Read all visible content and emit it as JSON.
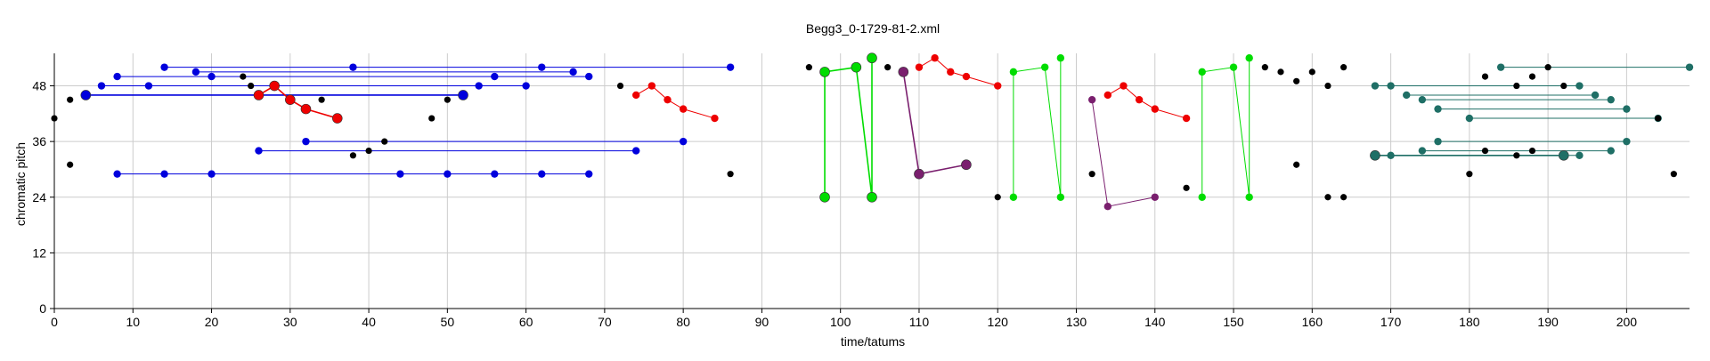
{
  "chart_data": {
    "type": "scatter",
    "title": "Begg3_0-1729-81-2.xml",
    "xlabel": "time/tatums",
    "ylabel": "chromatic pitch",
    "xlim": [
      0,
      208
    ],
    "ylim": [
      0,
      55
    ],
    "xticks": [
      0,
      10,
      20,
      30,
      40,
      50,
      60,
      70,
      80,
      90,
      100,
      110,
      120,
      130,
      140,
      150,
      160,
      170,
      180,
      190,
      200
    ],
    "yticks": [
      0,
      12,
      24,
      36,
      48
    ],
    "grid": true,
    "colors": {
      "black": "#000000",
      "blue": "#0000dd",
      "red": "#ee0000",
      "green": "#00dd00",
      "purple": "#7a1f6e",
      "teal": "#1f6f66",
      "grid": "#cccccc"
    },
    "points": [
      {
        "x": 0,
        "y": 41
      },
      {
        "x": 2,
        "y": 45
      },
      {
        "x": 2,
        "y": 31
      },
      {
        "x": 24,
        "y": 50
      },
      {
        "x": 25,
        "y": 48
      },
      {
        "x": 34,
        "y": 45
      },
      {
        "x": 38,
        "y": 33
      },
      {
        "x": 40,
        "y": 34
      },
      {
        "x": 42,
        "y": 36
      },
      {
        "x": 48,
        "y": 41
      },
      {
        "x": 50,
        "y": 45
      },
      {
        "x": 72,
        "y": 48
      },
      {
        "x": 86,
        "y": 29
      },
      {
        "x": 96,
        "y": 52
      },
      {
        "x": 106,
        "y": 52
      },
      {
        "x": 120,
        "y": 24
      },
      {
        "x": 132,
        "y": 29
      },
      {
        "x": 144,
        "y": 26
      },
      {
        "x": 154,
        "y": 52
      },
      {
        "x": 156,
        "y": 51
      },
      {
        "x": 158,
        "y": 49
      },
      {
        "x": 158,
        "y": 31
      },
      {
        "x": 160,
        "y": 51
      },
      {
        "x": 162,
        "y": 48
      },
      {
        "x": 162,
        "y": 24
      },
      {
        "x": 164,
        "y": 52
      },
      {
        "x": 164,
        "y": 24
      },
      {
        "x": 180,
        "y": 29
      },
      {
        "x": 182,
        "y": 50
      },
      {
        "x": 182,
        "y": 34
      },
      {
        "x": 186,
        "y": 48
      },
      {
        "x": 186,
        "y": 33
      },
      {
        "x": 188,
        "y": 50
      },
      {
        "x": 188,
        "y": 34
      },
      {
        "x": 190,
        "y": 52
      },
      {
        "x": 192,
        "y": 48
      },
      {
        "x": 204,
        "y": 41
      },
      {
        "x": 206,
        "y": 29
      }
    ],
    "series": [
      {
        "color": "blue",
        "points": [
          {
            "x": 14,
            "y": 52
          },
          {
            "x": 38,
            "y": 52
          },
          {
            "x": 62,
            "y": 52
          },
          {
            "x": 86,
            "y": 52
          }
        ]
      },
      {
        "color": "blue",
        "points": [
          {
            "x": 18,
            "y": 51
          },
          {
            "x": 66,
            "y": 51
          }
        ]
      },
      {
        "color": "blue",
        "points": [
          {
            "x": 8,
            "y": 50
          },
          {
            "x": 20,
            "y": 50
          },
          {
            "x": 56,
            "y": 50
          },
          {
            "x": 68,
            "y": 50
          }
        ]
      },
      {
        "color": "blue",
        "points": [
          {
            "x": 6,
            "y": 48
          },
          {
            "x": 12,
            "y": 48
          },
          {
            "x": 54,
            "y": 48
          },
          {
            "x": 60,
            "y": 48
          }
        ]
      },
      {
        "color": "blue",
        "big": true,
        "points": [
          {
            "x": 4,
            "y": 46
          },
          {
            "x": 52,
            "y": 46
          }
        ]
      },
      {
        "color": "blue",
        "points": [
          {
            "x": 32,
            "y": 36
          },
          {
            "x": 80,
            "y": 36
          }
        ]
      },
      {
        "color": "blue",
        "points": [
          {
            "x": 26,
            "y": 34
          },
          {
            "x": 74,
            "y": 34
          }
        ]
      },
      {
        "color": "blue",
        "points": [
          {
            "x": 8,
            "y": 29
          },
          {
            "x": 14,
            "y": 29
          },
          {
            "x": 20,
            "y": 29
          },
          {
            "x": 44,
            "y": 29
          },
          {
            "x": 50,
            "y": 29
          },
          {
            "x": 56,
            "y": 29
          },
          {
            "x": 62,
            "y": 29
          },
          {
            "x": 68,
            "y": 29
          }
        ]
      },
      {
        "color": "red",
        "big": true,
        "points": [
          {
            "x": 26,
            "y": 46
          },
          {
            "x": 28,
            "y": 48
          },
          {
            "x": 30,
            "y": 45
          },
          {
            "x": 32,
            "y": 43
          },
          {
            "x": 36,
            "y": 41
          }
        ]
      },
      {
        "color": "red",
        "points": [
          {
            "x": 74,
            "y": 46
          },
          {
            "x": 76,
            "y": 48
          },
          {
            "x": 78,
            "y": 45
          },
          {
            "x": 80,
            "y": 43
          },
          {
            "x": 84,
            "y": 41
          }
        ]
      },
      {
        "color": "red",
        "points": [
          {
            "x": 110,
            "y": 52
          },
          {
            "x": 112,
            "y": 54
          },
          {
            "x": 114,
            "y": 51
          },
          {
            "x": 116,
            "y": 50
          },
          {
            "x": 120,
            "y": 48
          }
        ]
      },
      {
        "color": "red",
        "points": [
          {
            "x": 134,
            "y": 46
          },
          {
            "x": 136,
            "y": 48
          },
          {
            "x": 138,
            "y": 45
          },
          {
            "x": 140,
            "y": 43
          },
          {
            "x": 144,
            "y": 41
          }
        ]
      },
      {
        "color": "green",
        "big": true,
        "points": [
          {
            "x": 98,
            "y": 24
          },
          {
            "x": 98,
            "y": 51
          },
          {
            "x": 102,
            "y": 52
          },
          {
            "x": 104,
            "y": 24
          },
          {
            "x": 104,
            "y": 54
          }
        ]
      },
      {
        "color": "green",
        "points": [
          {
            "x": 122,
            "y": 24
          },
          {
            "x": 122,
            "y": 51
          },
          {
            "x": 126,
            "y": 52
          },
          {
            "x": 128,
            "y": 24
          },
          {
            "x": 128,
            "y": 54
          }
        ]
      },
      {
        "color": "green",
        "points": [
          {
            "x": 146,
            "y": 24
          },
          {
            "x": 146,
            "y": 51
          },
          {
            "x": 150,
            "y": 52
          },
          {
            "x": 152,
            "y": 24
          },
          {
            "x": 152,
            "y": 54
          }
        ]
      },
      {
        "color": "purple",
        "big": true,
        "points": [
          {
            "x": 108,
            "y": 51
          },
          {
            "x": 110,
            "y": 29
          },
          {
            "x": 116,
            "y": 31
          }
        ]
      },
      {
        "color": "purple",
        "points": [
          {
            "x": 132,
            "y": 45
          },
          {
            "x": 134,
            "y": 22
          },
          {
            "x": 140,
            "y": 24
          }
        ]
      },
      {
        "color": "teal",
        "points": [
          {
            "x": 184,
            "y": 52
          },
          {
            "x": 208,
            "y": 52
          }
        ]
      },
      {
        "color": "teal",
        "points": [
          {
            "x": 168,
            "y": 48
          },
          {
            "x": 170,
            "y": 48
          },
          {
            "x": 194,
            "y": 48
          }
        ]
      },
      {
        "color": "teal",
        "points": [
          {
            "x": 172,
            "y": 46
          },
          {
            "x": 196,
            "y": 46
          }
        ]
      },
      {
        "color": "teal",
        "points": [
          {
            "x": 174,
            "y": 45
          },
          {
            "x": 198,
            "y": 45
          }
        ]
      },
      {
        "color": "teal",
        "points": [
          {
            "x": 176,
            "y": 43
          },
          {
            "x": 200,
            "y": 43
          }
        ]
      },
      {
        "color": "teal",
        "points": [
          {
            "x": 180,
            "y": 41
          },
          {
            "x": 204,
            "y": 41
          }
        ]
      },
      {
        "color": "teal",
        "points": [
          {
            "x": 176,
            "y": 36
          },
          {
            "x": 200,
            "y": 36
          }
        ]
      },
      {
        "color": "teal",
        "points": [
          {
            "x": 174,
            "y": 34
          },
          {
            "x": 198,
            "y": 34
          }
        ]
      },
      {
        "color": "teal",
        "big": true,
        "points": [
          {
            "x": 168,
            "y": 33
          },
          {
            "x": 192,
            "y": 33
          }
        ]
      },
      {
        "color": "teal",
        "points": [
          {
            "x": 170,
            "y": 33
          },
          {
            "x": 194,
            "y": 33
          }
        ]
      }
    ]
  }
}
